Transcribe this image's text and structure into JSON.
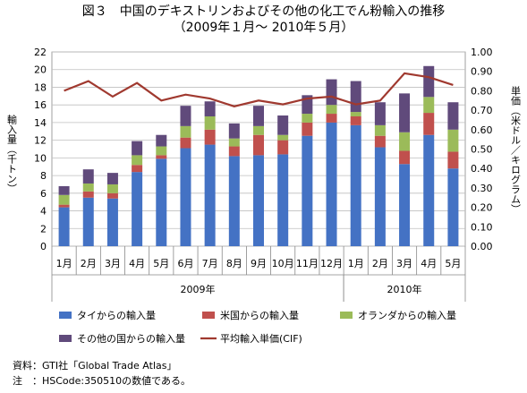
{
  "title_line1": "図３　中国のデキストリンおよびその他の化工でん粉輸入の推移",
  "title_line2": "（2009年１月～ 2010年５月）",
  "source_note": "資料：GTI社「Global Trade Atlas」",
  "hs_note": "注　：HSCode:350510の数値である。",
  "chart_data": {
    "type": "bar",
    "stacked": true,
    "categories": [
      "1月",
      "2月",
      "3月",
      "4月",
      "5月",
      "6月",
      "7月",
      "8月",
      "9月",
      "10月",
      "11月",
      "12月",
      "1月",
      "2月",
      "3月",
      "4月",
      "5月"
    ],
    "year_groups": [
      {
        "label": "2009年",
        "start": 0,
        "end": 11
      },
      {
        "label": "2010年",
        "start": 12,
        "end": 16
      }
    ],
    "ylabel": "輸入量（千トン）",
    "y2label": "単価（米ドル／キログラム）",
    "ylim": [
      0,
      22
    ],
    "yticks": [
      0,
      2,
      4,
      6,
      8,
      10,
      12,
      14,
      16,
      18,
      20,
      22
    ],
    "y2lim": [
      0,
      1.0
    ],
    "y2ticks": [
      "0.00",
      "0.10",
      "0.20",
      "0.30",
      "0.40",
      "0.50",
      "0.60",
      "0.70",
      "0.80",
      "0.90",
      "1.00"
    ],
    "grid": true,
    "legend_position": "bottom",
    "series": [
      {
        "name": "タイからの輸入量",
        "color": "#4472c4",
        "values": [
          4.4,
          5.5,
          5.4,
          8.4,
          9.9,
          11.1,
          11.5,
          10.2,
          10.3,
          10.4,
          12.5,
          14.0,
          13.7,
          11.2,
          9.3,
          12.6,
          8.8
        ]
      },
      {
        "name": "米国からの輸入量",
        "color": "#c0504d",
        "values": [
          0.3,
          0.7,
          0.6,
          0.8,
          0.4,
          1.2,
          1.7,
          1.1,
          2.3,
          1.6,
          1.5,
          1.0,
          1.0,
          1.3,
          1.5,
          2.5,
          1.9
        ]
      },
      {
        "name": "オランダからの輸入量",
        "color": "#9bbb59",
        "values": [
          1.1,
          0.9,
          1.0,
          1.1,
          1.0,
          1.3,
          1.5,
          0.9,
          1.0,
          0.6,
          1.0,
          1.0,
          0.5,
          1.2,
          2.1,
          1.8,
          2.5
        ]
      },
      {
        "name": "その他の国からの輸入量",
        "color": "#604a7b",
        "values": [
          1.0,
          1.6,
          1.3,
          1.6,
          1.3,
          2.3,
          1.7,
          1.7,
          2.3,
          2.2,
          2.1,
          2.9,
          3.5,
          2.6,
          4.4,
          3.5,
          3.1
        ]
      }
    ],
    "line_series": {
      "name": "平均輸入単価(CIF)",
      "color": "#a0392f",
      "axis": "right",
      "values": [
        0.8,
        0.85,
        0.77,
        0.84,
        0.75,
        0.78,
        0.76,
        0.72,
        0.75,
        0.73,
        0.76,
        0.77,
        0.73,
        0.75,
        0.89,
        0.87,
        0.83
      ]
    }
  }
}
